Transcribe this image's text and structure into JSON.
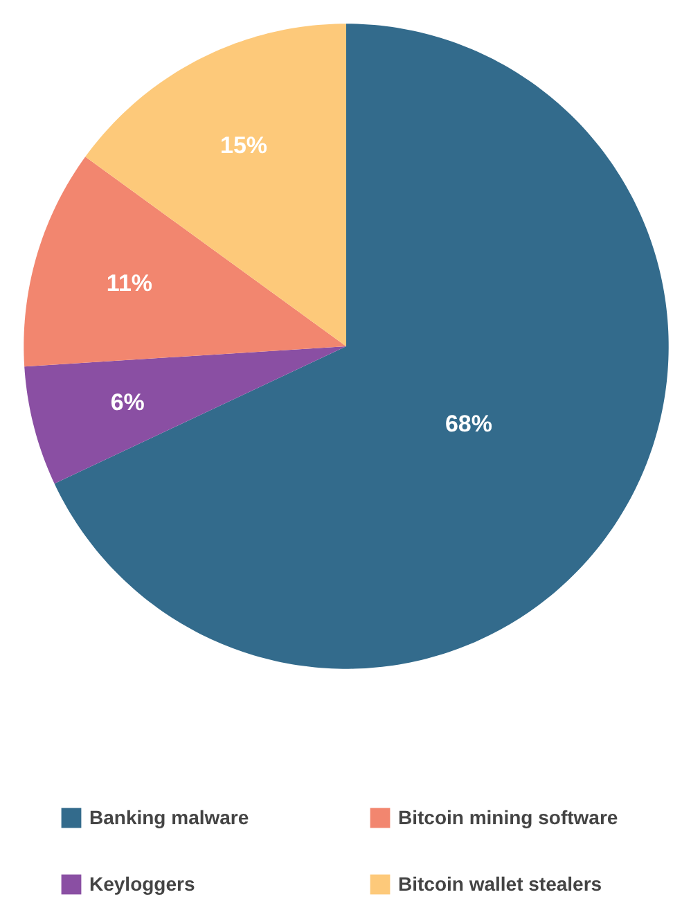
{
  "chart_data": {
    "type": "pie",
    "categories": [
      "Banking malware",
      "Keyloggers",
      "Bitcoin mining software",
      "Bitcoin wallet stealers"
    ],
    "values": [
      68,
      6,
      11,
      15
    ],
    "colors": [
      "#336b8c",
      "#8a4fa3",
      "#f2866f",
      "#fdc97a"
    ],
    "value_labels": [
      "68%",
      "6%",
      "11%",
      "15%"
    ],
    "legend": "bottom"
  }
}
